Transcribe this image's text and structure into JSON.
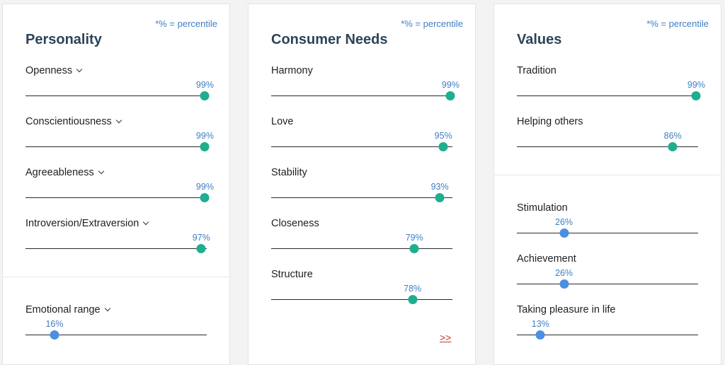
{
  "colors": {
    "high": "#1fae8f",
    "low": "#4b8fe2",
    "title": "#2b4459",
    "accent": "#3f7fc1"
  },
  "percentile_note": "*% = percentile",
  "personality": {
    "title": "Personality",
    "traits": [
      {
        "label": "Openness",
        "value_text": "99%",
        "percent": 99,
        "level": "high"
      },
      {
        "label": "Conscientiousness",
        "value_text": "99%",
        "percent": 99,
        "level": "high"
      },
      {
        "label": "Agreeableness",
        "value_text": "99%",
        "percent": 99,
        "level": "high"
      },
      {
        "label": "Introversion/Extraversion",
        "value_text": "97%",
        "percent": 97,
        "level": "high"
      },
      {
        "label": "Emotional range",
        "value_text": "16%",
        "percent": 16,
        "level": "low"
      }
    ]
  },
  "needs": {
    "title": "Consumer Needs",
    "traits": [
      {
        "label": "Harmony",
        "value_text": "99%",
        "percent": 99,
        "level": "high"
      },
      {
        "label": "Love",
        "value_text": "95%",
        "percent": 95,
        "level": "high"
      },
      {
        "label": "Stability",
        "value_text": "93%",
        "percent": 93,
        "level": "high"
      },
      {
        "label": "Closeness",
        "value_text": "79%",
        "percent": 79,
        "level": "high"
      },
      {
        "label": "Structure",
        "value_text": "78%",
        "percent": 78,
        "level": "high"
      }
    ],
    "more_link": ">>"
  },
  "values": {
    "title": "Values",
    "traits": [
      {
        "label": "Tradition",
        "value_text": "99%",
        "percent": 99,
        "level": "high"
      },
      {
        "label": "Helping others",
        "value_text": "86%",
        "percent": 86,
        "level": "high"
      },
      {
        "label": "Stimulation",
        "value_text": "26%",
        "percent": 26,
        "level": "low"
      },
      {
        "label": "Achievement",
        "value_text": "26%",
        "percent": 26,
        "level": "low"
      },
      {
        "label": "Taking pleasure in life",
        "value_text": "13%",
        "percent": 13,
        "level": "low"
      }
    ]
  }
}
